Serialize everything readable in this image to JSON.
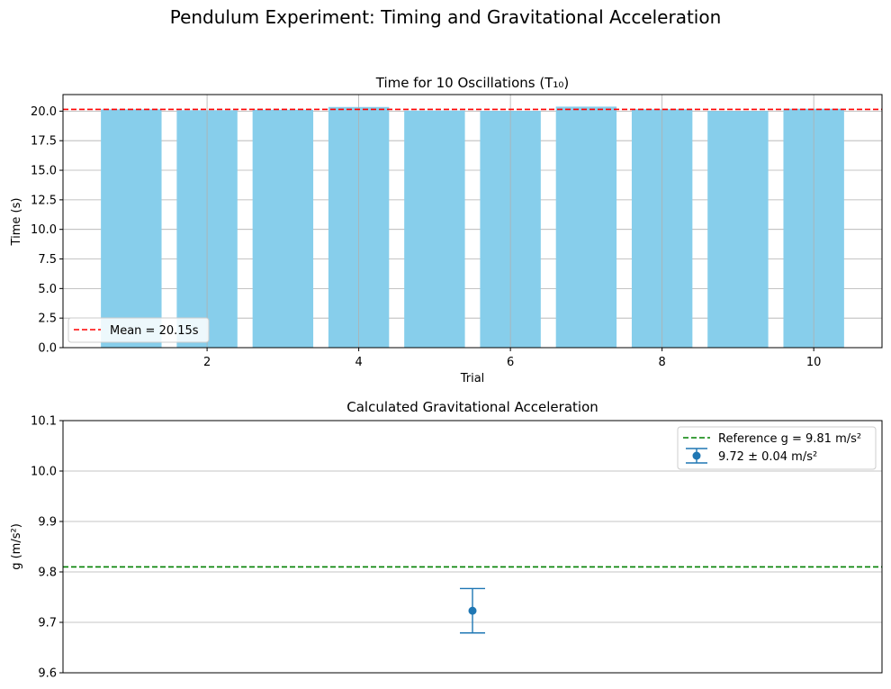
{
  "figure": {
    "title": "Pendulum Experiment: Timing and Gravitational Acceleration"
  },
  "chart_data": [
    {
      "type": "bar",
      "title": "Time for 10 Oscillations (T₁₀)",
      "xlabel": "Trial",
      "ylabel": "Time (s)",
      "x": [
        1,
        2,
        3,
        4,
        5,
        6,
        7,
        8,
        9,
        10
      ],
      "values": [
        20.15,
        20.08,
        20.12,
        20.35,
        20.05,
        20.02,
        20.38,
        20.16,
        20.01,
        20.2
      ],
      "xlim": [
        0.1,
        10.9
      ],
      "ylim": [
        0,
        21.4
      ],
      "xticks": [
        2,
        4,
        6,
        8,
        10
      ],
      "yticks": [
        0.0,
        2.5,
        5.0,
        7.5,
        10.0,
        12.5,
        15.0,
        17.5,
        20.0
      ],
      "grid": true,
      "bar_color": "#87ceeb",
      "mean_line": {
        "value": 20.15,
        "label": "Mean = 20.15s",
        "color": "#ff0000",
        "style": "dashed"
      },
      "legend": {
        "placement": "lower-left"
      }
    },
    {
      "type": "scatter",
      "title": "Calculated Gravitational Acceleration",
      "ylabel": "g (m/s²)",
      "x": [
        0
      ],
      "values": [
        9.723
      ],
      "error": [
        0.044
      ],
      "ylim": [
        9.6,
        10.1
      ],
      "yticks": [
        9.6,
        9.7,
        9.8,
        9.9,
        10.0,
        10.1
      ],
      "grid": true,
      "point_color": "#1f77b4",
      "series_label": "9.72 ± 0.04 m/s²",
      "reference_line": {
        "value": 9.81,
        "label": "Reference g = 9.81 m/s²",
        "color": "#008000",
        "style": "dashed"
      },
      "legend": {
        "placement": "upper-right"
      }
    }
  ]
}
